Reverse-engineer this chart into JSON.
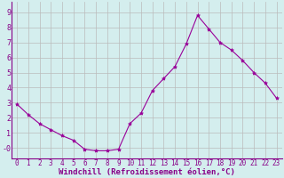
{
  "x": [
    0,
    1,
    2,
    3,
    4,
    5,
    6,
    7,
    8,
    9,
    10,
    11,
    12,
    13,
    14,
    15,
    16,
    17,
    18,
    19,
    20,
    21,
    22,
    23
  ],
  "y": [
    2.9,
    2.2,
    1.6,
    1.2,
    0.8,
    0.5,
    -0.1,
    -0.2,
    -0.2,
    -0.1,
    1.6,
    2.3,
    3.8,
    4.6,
    5.4,
    6.9,
    8.8,
    7.9,
    7.0,
    6.5,
    5.8,
    5.0,
    4.3,
    3.3
  ],
  "line_color": "#990099",
  "marker": "*",
  "marker_size": 3.0,
  "background_color": "#d4eeee",
  "grid_color": "#bbbbbb",
  "xlabel": "Windchill (Refroidissement éolien,°C)",
  "xlabel_color": "#880088",
  "tick_color": "#880088",
  "ylim": [
    -0.7,
    9.7
  ],
  "xlim": [
    -0.5,
    23.5
  ],
  "yticks": [
    0,
    1,
    2,
    3,
    4,
    5,
    6,
    7,
    8,
    9
  ],
  "xticks": [
    0,
    1,
    2,
    3,
    4,
    5,
    6,
    7,
    8,
    9,
    10,
    11,
    12,
    13,
    14,
    15,
    16,
    17,
    18,
    19,
    20,
    21,
    22,
    23
  ],
  "ytick_labels": [
    "-0",
    "1",
    "2",
    "3",
    "4",
    "5",
    "6",
    "7",
    "8",
    "9"
  ],
  "spine_color": "#880088",
  "xlabel_fontsize": 6.5,
  "tick_fontsize": 5.5
}
